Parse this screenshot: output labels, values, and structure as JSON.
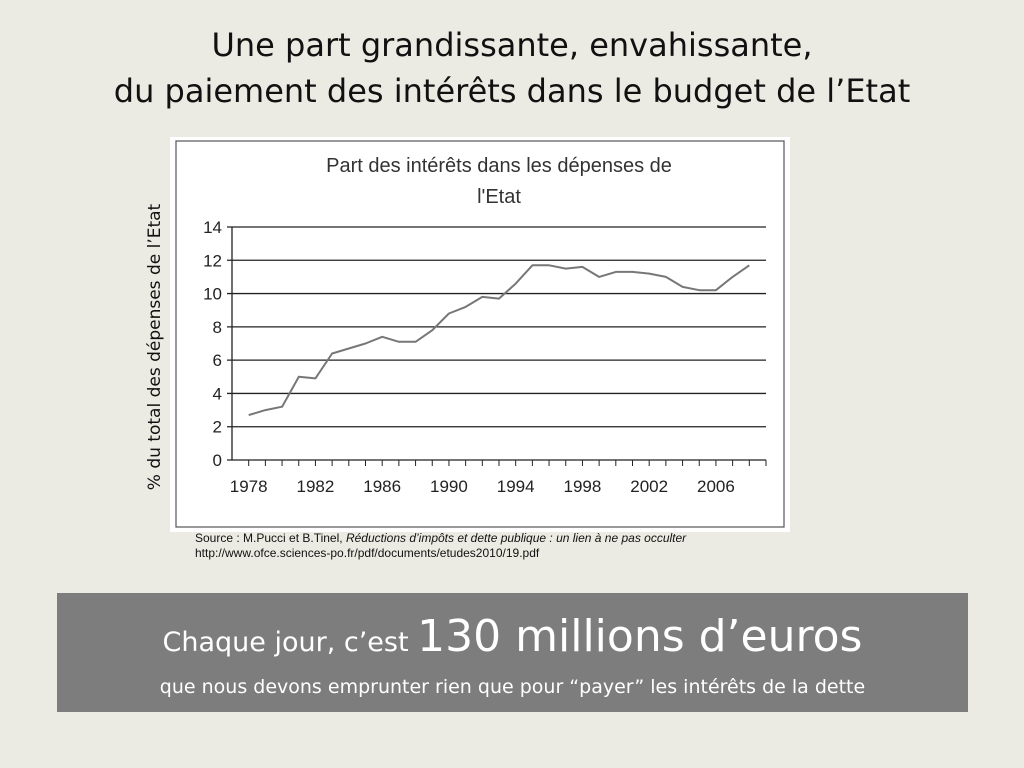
{
  "slide": {
    "title_line1": "Une part grandissante, envahissante,",
    "title_line2": "du paiement des intérêts dans le budget de l’Etat",
    "side_label": "% du total des dépenses de l’Etat",
    "source_prefix": "Source : M.Pucci et B.Tinel, ",
    "source_title": "Réductions d’impôts et dette publique : un lien à ne pas occulter",
    "source_url": "http://www.ofce.sciences-po.fr/pdf/documents/etudes2010/19.pdf",
    "banner_lead": "Chaque jour, c’est ",
    "banner_amount": "130 millions d’euros",
    "banner_sub": "que nous devons emprunter rien que pour “payer” les intérêts de la dette",
    "colors": {
      "background": "#ecebe3",
      "banner": "#7d7d7d",
      "line": "#777777"
    }
  },
  "chart_data": {
    "type": "line",
    "title_line1": "Part des intérêts dans les dépenses de",
    "title_line2": "l'Etat",
    "ylabel": "% du total des dépenses de l’Etat",
    "xlabel": "",
    "xlim": [
      1977,
      2009
    ],
    "ylim": [
      0,
      14
    ],
    "x_ticks": [
      1978,
      1982,
      1986,
      1990,
      1994,
      1998,
      2002,
      2006
    ],
    "y_ticks": [
      0,
      2,
      4,
      6,
      8,
      10,
      12,
      14
    ],
    "grid": "horizontal",
    "legend": "none",
    "series": [
      {
        "x": [
          1978,
          1979,
          1980,
          1981,
          1982,
          1983,
          1984,
          1985,
          1986,
          1987,
          1988,
          1989,
          1990,
          1991,
          1992,
          1993,
          1994,
          1995,
          1996,
          1997,
          1998,
          1999,
          2000,
          2001,
          2002,
          2003,
          2004,
          2005,
          2006,
          2007,
          2008
        ],
        "values": [
          2.7,
          3.0,
          3.2,
          5.0,
          4.9,
          6.4,
          6.7,
          7.0,
          7.4,
          7.1,
          7.1,
          7.8,
          8.8,
          9.2,
          9.8,
          9.7,
          10.6,
          11.7,
          11.7,
          11.5,
          11.6,
          11.0,
          11.3,
          11.3,
          11.2,
          11.0,
          10.4,
          10.2,
          10.2,
          11.0,
          11.7
        ]
      }
    ]
  }
}
